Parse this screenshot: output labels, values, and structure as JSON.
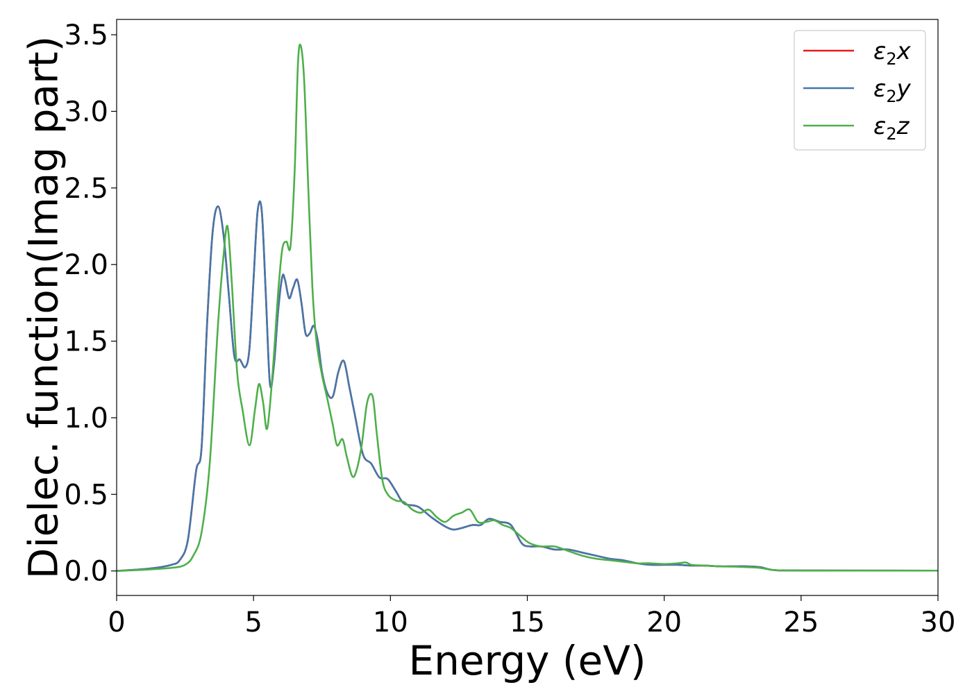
{
  "chart_data": {
    "type": "line",
    "title": "",
    "xlabel": "Energy (eV)",
    "ylabel": "Dielec. function(Imag part)",
    "xlim": [
      0,
      30
    ],
    "ylim": [
      -0.16,
      3.6
    ],
    "xticks": [
      0,
      5,
      10,
      15,
      20,
      25,
      30
    ],
    "xtick_labels": [
      "0",
      "5",
      "10",
      "15",
      "20",
      "25",
      "30"
    ],
    "yticks": [
      0.0,
      0.5,
      1.0,
      1.5,
      2.0,
      2.5,
      3.0,
      3.5
    ],
    "ytick_labels": [
      "0.0",
      "0.5",
      "1.0",
      "1.5",
      "2.0",
      "2.5",
      "3.0",
      "3.5"
    ],
    "grid": false,
    "legend_position": "top-right",
    "series": [
      {
        "name": "ε2x",
        "legend_base": "ε",
        "legend_sub": "2",
        "legend_suffix": "x",
        "color": "#e41a1c",
        "x": [
          0,
          1,
          1.5,
          2,
          2.3,
          2.6,
          2.9,
          3.1,
          3.3,
          3.5,
          3.7,
          3.9,
          4.1,
          4.3,
          4.5,
          4.7,
          4.85,
          5.0,
          5.15,
          5.3,
          5.45,
          5.6,
          5.75,
          5.9,
          6.05,
          6.15,
          6.3,
          6.45,
          6.6,
          6.75,
          6.9,
          7.05,
          7.2,
          7.35,
          7.5,
          7.7,
          7.9,
          8.1,
          8.3,
          8.5,
          8.7,
          9.0,
          9.3,
          9.6,
          9.9,
          10.2,
          10.5,
          11.0,
          11.5,
          12.0,
          12.3,
          12.6,
          13.0,
          13.3,
          13.6,
          14.0,
          14.4,
          14.8,
          15.1,
          15.5,
          16.0,
          16.5,
          17.0,
          17.5,
          18.0,
          18.5,
          19.0,
          19.5,
          20.0,
          20.5,
          21.0,
          21.5,
          22.0,
          22.5,
          23.0,
          23.5,
          24.0,
          25.0,
          30.0
        ],
        "y": [
          0.0,
          0.012,
          0.022,
          0.04,
          0.07,
          0.2,
          0.65,
          0.8,
          1.6,
          2.2,
          2.38,
          2.2,
          1.8,
          1.4,
          1.38,
          1.33,
          1.45,
          1.9,
          2.35,
          2.35,
          1.8,
          1.22,
          1.35,
          1.7,
          1.92,
          1.9,
          1.78,
          1.85,
          1.9,
          1.75,
          1.55,
          1.55,
          1.6,
          1.5,
          1.3,
          1.16,
          1.14,
          1.3,
          1.37,
          1.2,
          1.02,
          0.76,
          0.7,
          0.61,
          0.6,
          0.52,
          0.44,
          0.42,
          0.35,
          0.29,
          0.27,
          0.28,
          0.3,
          0.3,
          0.34,
          0.32,
          0.3,
          0.18,
          0.16,
          0.16,
          0.14,
          0.14,
          0.12,
          0.1,
          0.08,
          0.07,
          0.05,
          0.04,
          0.04,
          0.04,
          0.035,
          0.035,
          0.03,
          0.03,
          0.03,
          0.025,
          0.006,
          0.003,
          0.002
        ]
      },
      {
        "name": "ε2y",
        "legend_base": "ε",
        "legend_sub": "2",
        "legend_suffix": "y",
        "color": "#4477aa",
        "x": [
          0,
          1,
          1.5,
          2,
          2.3,
          2.6,
          2.9,
          3.1,
          3.3,
          3.5,
          3.7,
          3.9,
          4.1,
          4.3,
          4.5,
          4.7,
          4.85,
          5.0,
          5.15,
          5.3,
          5.45,
          5.6,
          5.75,
          5.9,
          6.05,
          6.15,
          6.3,
          6.45,
          6.6,
          6.75,
          6.9,
          7.05,
          7.2,
          7.35,
          7.5,
          7.7,
          7.9,
          8.1,
          8.3,
          8.5,
          8.7,
          9.0,
          9.3,
          9.6,
          9.9,
          10.2,
          10.5,
          11.0,
          11.5,
          12.0,
          12.3,
          12.6,
          13.0,
          13.3,
          13.6,
          14.0,
          14.4,
          14.8,
          15.1,
          15.5,
          16.0,
          16.5,
          17.0,
          17.5,
          18.0,
          18.5,
          19.0,
          19.5,
          20.0,
          20.5,
          21.0,
          21.5,
          22.0,
          22.5,
          23.0,
          23.5,
          24.0,
          25.0,
          30.0
        ],
        "y": [
          0.0,
          0.012,
          0.022,
          0.04,
          0.07,
          0.2,
          0.65,
          0.8,
          1.6,
          2.2,
          2.38,
          2.2,
          1.8,
          1.4,
          1.38,
          1.33,
          1.45,
          1.9,
          2.35,
          2.35,
          1.8,
          1.22,
          1.35,
          1.7,
          1.92,
          1.9,
          1.78,
          1.85,
          1.9,
          1.75,
          1.55,
          1.55,
          1.6,
          1.5,
          1.3,
          1.16,
          1.14,
          1.3,
          1.37,
          1.2,
          1.02,
          0.76,
          0.7,
          0.61,
          0.6,
          0.52,
          0.44,
          0.42,
          0.35,
          0.29,
          0.27,
          0.28,
          0.3,
          0.3,
          0.34,
          0.32,
          0.3,
          0.18,
          0.16,
          0.16,
          0.14,
          0.14,
          0.12,
          0.1,
          0.08,
          0.07,
          0.05,
          0.04,
          0.04,
          0.04,
          0.035,
          0.035,
          0.03,
          0.03,
          0.03,
          0.025,
          0.006,
          0.003,
          0.002
        ]
      },
      {
        "name": "ε2z",
        "legend_base": "ε",
        "legend_sub": "2",
        "legend_suffix": "z",
        "color": "#4daf4a",
        "x": [
          0,
          1,
          2,
          2.5,
          2.8,
          3.1,
          3.4,
          3.7,
          3.9,
          4.05,
          4.2,
          4.4,
          4.6,
          4.85,
          5.05,
          5.2,
          5.35,
          5.5,
          5.7,
          5.9,
          6.05,
          6.2,
          6.35,
          6.5,
          6.62,
          6.72,
          6.85,
          7.0,
          7.15,
          7.3,
          7.5,
          7.7,
          7.9,
          8.05,
          8.25,
          8.4,
          8.6,
          8.75,
          8.95,
          9.15,
          9.35,
          9.5,
          9.7,
          9.9,
          10.2,
          10.5,
          10.8,
          11.1,
          11.4,
          11.7,
          12.0,
          12.3,
          12.6,
          12.9,
          13.2,
          13.5,
          13.8,
          14.1,
          14.4,
          14.8,
          15.1,
          15.5,
          16.0,
          16.5,
          17.0,
          17.5,
          18.0,
          18.5,
          19.0,
          19.5,
          20.0,
          20.5,
          20.8,
          21.0,
          21.5,
          22.0,
          22.5,
          23.0,
          23.5,
          24.0,
          25.0,
          30.0
        ],
        "y": [
          0.0,
          0.008,
          0.02,
          0.04,
          0.1,
          0.25,
          0.7,
          1.6,
          2.05,
          2.25,
          1.9,
          1.3,
          1.05,
          0.82,
          1.05,
          1.22,
          1.1,
          0.93,
          1.3,
          1.82,
          2.1,
          2.15,
          2.12,
          2.6,
          3.3,
          3.43,
          3.2,
          2.5,
          1.85,
          1.5,
          1.28,
          1.12,
          0.95,
          0.82,
          0.86,
          0.75,
          0.62,
          0.65,
          0.82,
          1.1,
          1.14,
          0.9,
          0.6,
          0.5,
          0.46,
          0.45,
          0.4,
          0.38,
          0.4,
          0.35,
          0.32,
          0.36,
          0.38,
          0.4,
          0.32,
          0.32,
          0.33,
          0.3,
          0.28,
          0.22,
          0.18,
          0.16,
          0.16,
          0.13,
          0.1,
          0.08,
          0.07,
          0.06,
          0.05,
          0.05,
          0.045,
          0.05,
          0.055,
          0.04,
          0.035,
          0.03,
          0.028,
          0.025,
          0.02,
          0.006,
          0.003,
          0.002
        ]
      }
    ]
  }
}
